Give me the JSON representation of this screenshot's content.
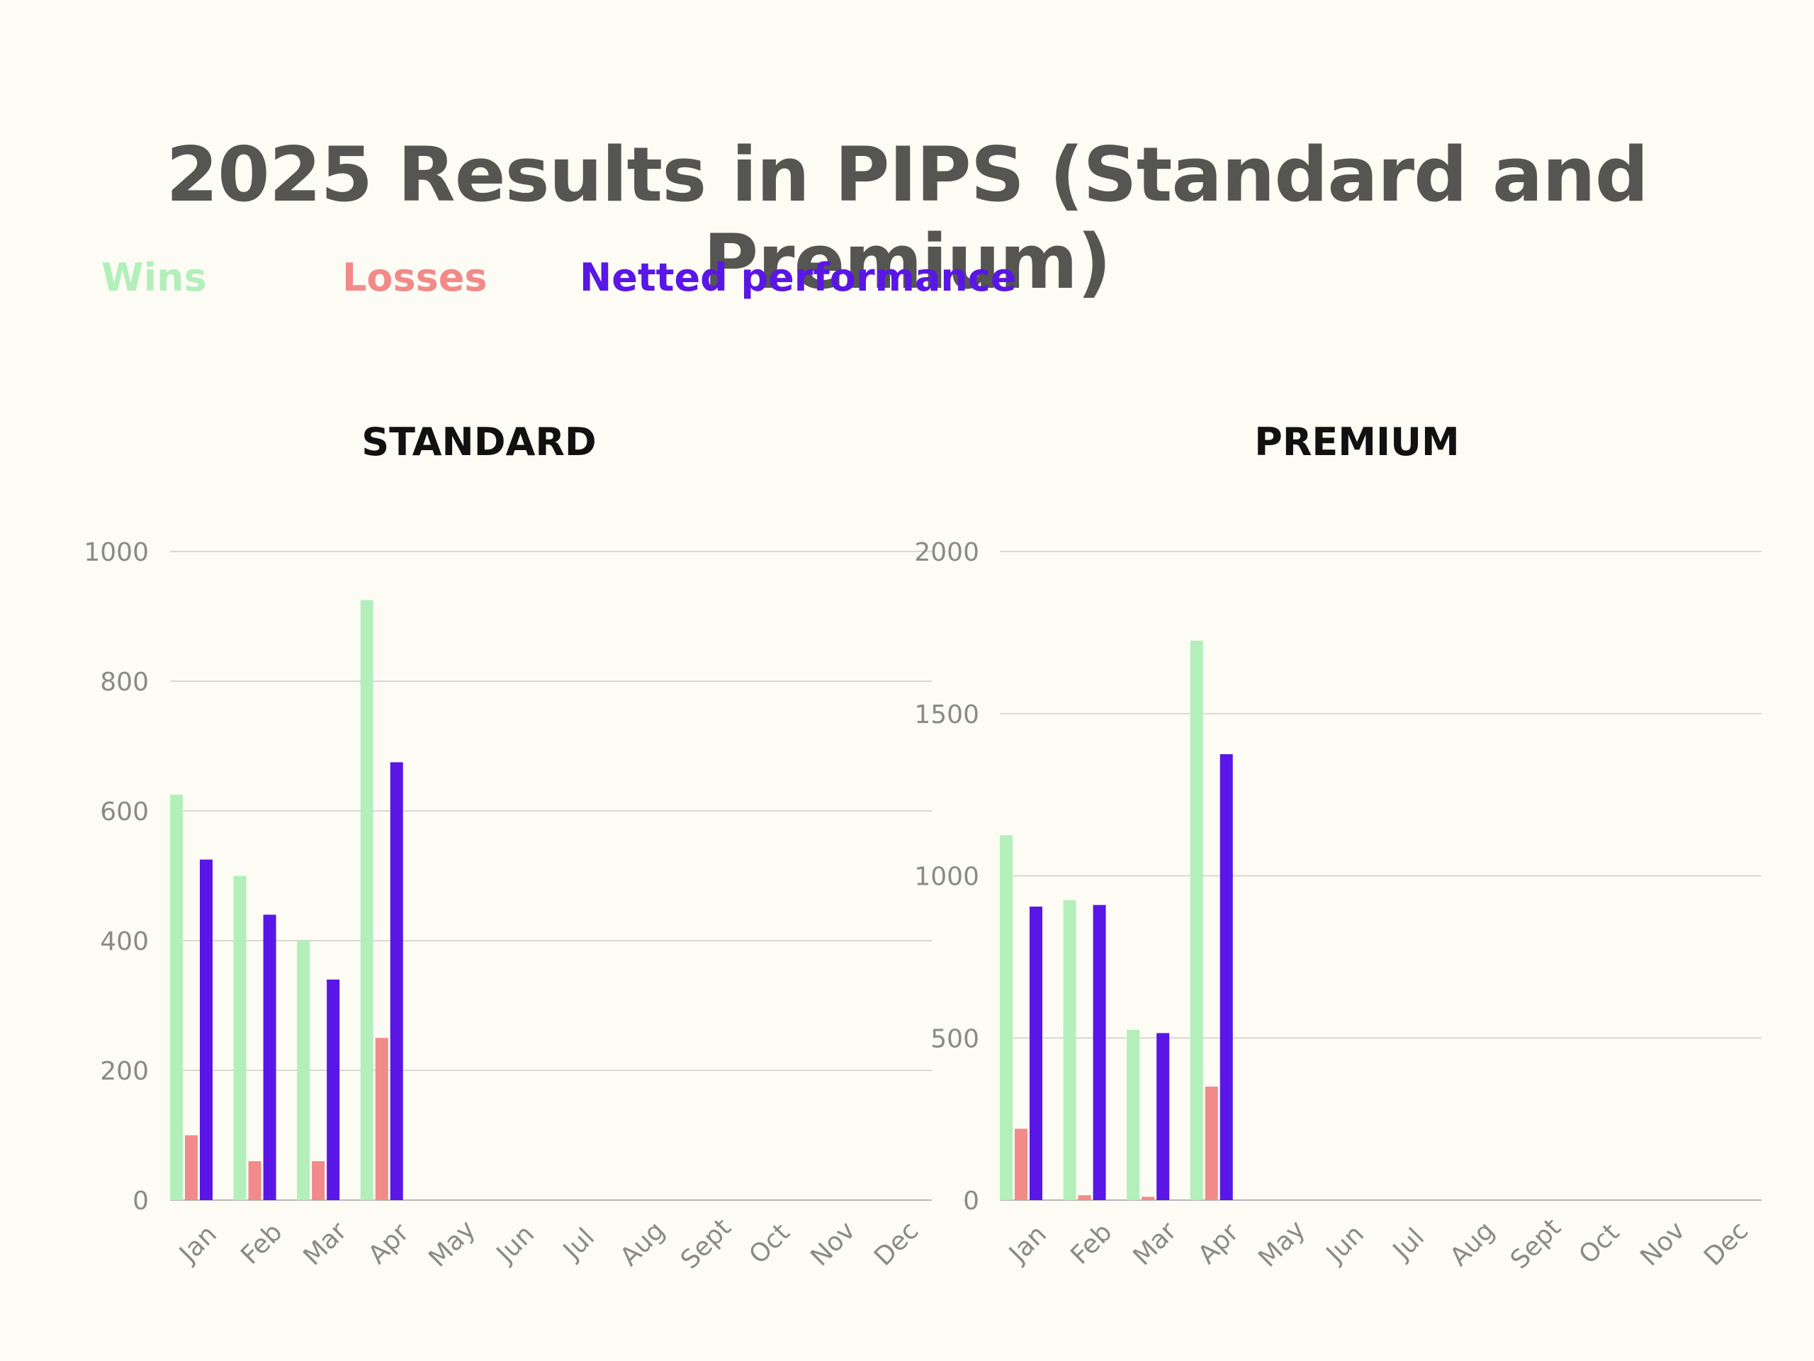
{
  "title": "2025 Results in PIPS (Standard and Premium)",
  "legend": [
    {
      "label": "Wins",
      "color": "#b3efbb"
    },
    {
      "label": "Losses",
      "color": "#f28a8a"
    },
    {
      "label": "Netted performance",
      "color": "#5a16e6"
    }
  ],
  "chart_data": [
    {
      "type": "bar",
      "title": "STANDARD",
      "categories": [
        "Jan",
        "Feb",
        "Mar",
        "Apr",
        "May",
        "Jun",
        "Jul",
        "Aug",
        "Sept",
        "Oct",
        "Nov",
        "Dec"
      ],
      "ylim": [
        0,
        1000
      ],
      "yticks": [
        0,
        200,
        400,
        600,
        800,
        1000
      ],
      "grid": true,
      "series": [
        {
          "name": "Wins",
          "color": "#b3efbb",
          "values": [
            625,
            500,
            400,
            925,
            0,
            0,
            0,
            0,
            0,
            0,
            0,
            0
          ]
        },
        {
          "name": "Losses",
          "color": "#f28a8a",
          "values": [
            100,
            60,
            60,
            250,
            0,
            0,
            0,
            0,
            0,
            0,
            0,
            0
          ]
        },
        {
          "name": "Netted performance",
          "color": "#5a16e6",
          "values": [
            525,
            440,
            340,
            675,
            0,
            0,
            0,
            0,
            0,
            0,
            0,
            0
          ]
        }
      ]
    },
    {
      "type": "bar",
      "title": "PREMIUM",
      "categories": [
        "Jan",
        "Feb",
        "Mar",
        "Apr",
        "May",
        "Jun",
        "Jul",
        "Aug",
        "Sept",
        "Oct",
        "Nov",
        "Dec"
      ],
      "ylim": [
        0,
        2000
      ],
      "yticks": [
        0,
        500,
        1000,
        1500,
        2000
      ],
      "grid": true,
      "series": [
        {
          "name": "Wins",
          "color": "#b3efbb",
          "values": [
            1125,
            925,
            525,
            1725,
            0,
            0,
            0,
            0,
            0,
            0,
            0,
            0
          ]
        },
        {
          "name": "Losses",
          "color": "#f28a8a",
          "values": [
            220,
            15,
            10,
            350,
            0,
            0,
            0,
            0,
            0,
            0,
            0,
            0
          ]
        },
        {
          "name": "Netted performance",
          "color": "#5a16e6",
          "values": [
            905,
            910,
            515,
            1375,
            0,
            0,
            0,
            0,
            0,
            0,
            0,
            0
          ]
        }
      ]
    }
  ]
}
